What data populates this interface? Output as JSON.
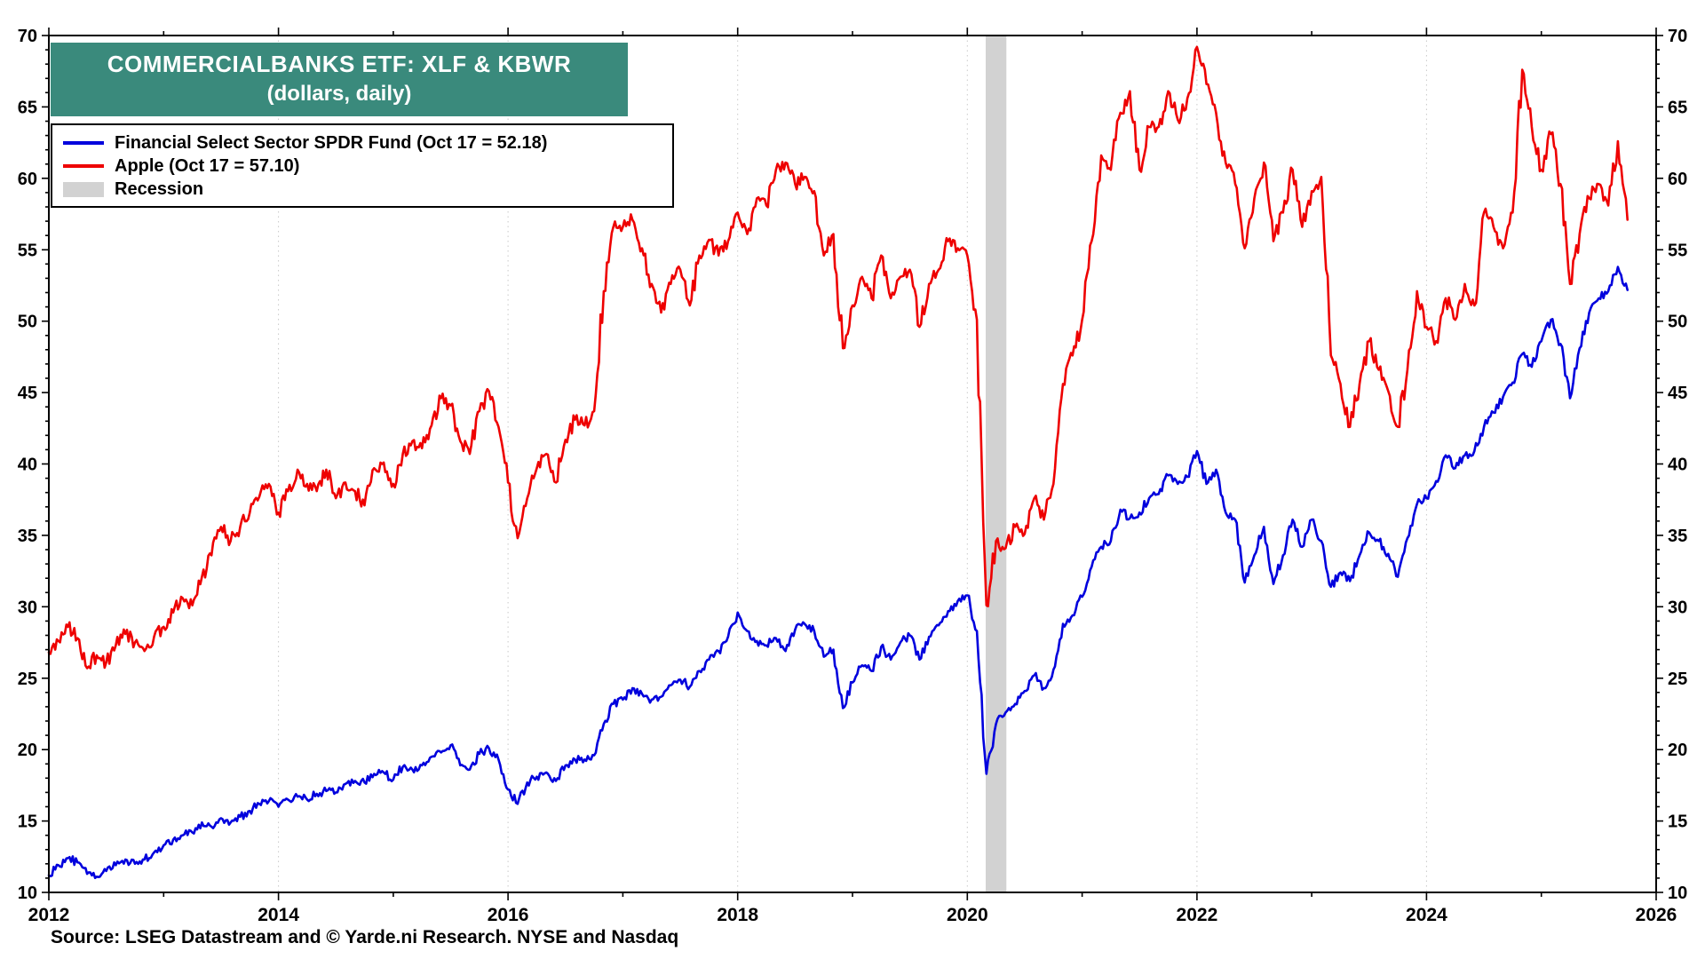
{
  "chart_data": {
    "type": "line",
    "title": "COMMERCIALBANKS ETF: XLF & KBWR",
    "subtitle": "(dollars, daily)",
    "xlabel": "",
    "ylabel": "dollars",
    "xlim": [
      2012,
      2026
    ],
    "ylim": [
      10,
      70
    ],
    "y_ticks": [
      10,
      15,
      20,
      25,
      30,
      35,
      40,
      45,
      50,
      55,
      60,
      65,
      70
    ],
    "x_ticks": [
      2012,
      2014,
      2016,
      2018,
      2020,
      2022,
      2024,
      2026
    ],
    "grid": "faint dashed vertical lines at even years",
    "legend_position": "top-left",
    "x_start": 2012.0,
    "x_step": "monthly (1/12 year)",
    "recession_bands": [
      {
        "start": 2020.16,
        "end": 2020.34
      }
    ],
    "legend": {
      "recession_label": "Recession"
    },
    "series": [
      {
        "name": "Financial Select Sector SPDR Fund (Oct 17 = 52.18)",
        "color": "#0000dd",
        "last_value": 52.18,
        "values": [
          11.2,
          11.9,
          12.4,
          12.1,
          11.3,
          11.1,
          11.5,
          11.9,
          12.3,
          12.0,
          12.3,
          12.8,
          13.3,
          13.7,
          14.0,
          14.2,
          14.9,
          14.6,
          15.2,
          14.9,
          15.3,
          15.7,
          16.2,
          16.4,
          16.0,
          16.5,
          16.7,
          16.5,
          16.9,
          17.1,
          17.0,
          17.6,
          17.8,
          17.7,
          18.3,
          18.4,
          17.9,
          18.8,
          18.6,
          18.9,
          19.5,
          19.8,
          20.3,
          18.9,
          18.6,
          19.7,
          20.1,
          19.3,
          17.2,
          16.2,
          17.7,
          18.1,
          18.4,
          17.8,
          18.9,
          19.3,
          19.3,
          19.6,
          21.8,
          23.2,
          23.5,
          24.3,
          23.9,
          23.5,
          23.7,
          24.5,
          24.9,
          24.4,
          25.5,
          26.3,
          26.9,
          27.9,
          29.6,
          28.3,
          27.6,
          27.3,
          27.8,
          26.9,
          28.4,
          28.8,
          28.3,
          26.5,
          27.0,
          22.9,
          24.7,
          25.9,
          25.5,
          27.2,
          26.3,
          27.5,
          28.0,
          26.3,
          27.9,
          28.7,
          29.7,
          30.4,
          30.8,
          28.3,
          18.3,
          21.8,
          22.6,
          23.2,
          24.1,
          25.2,
          24.3,
          25.6,
          28.8,
          29.4,
          30.7,
          32.8,
          34.2,
          34.6,
          36.8,
          36.2,
          36.6,
          37.6,
          37.9,
          39.2,
          38.6,
          39.1,
          40.9,
          38.6,
          39.6,
          36.6,
          36.1,
          31.7,
          33.6,
          35.6,
          31.6,
          33.6,
          36.1,
          34.2,
          36.1,
          34.6,
          31.4,
          32.4,
          31.8,
          33.6,
          35.2,
          34.6,
          33.7,
          32.1,
          34.8,
          37.2,
          37.6,
          38.8,
          40.6,
          39.7,
          40.6,
          40.9,
          42.6,
          43.6,
          44.7,
          45.7,
          47.7,
          46.8,
          48.6,
          50.1,
          48.4,
          44.6,
          48.1,
          50.6,
          51.6,
          52.1,
          53.8,
          52.18
        ]
      },
      {
        "name": "Apple (Oct 17 = 57.10)",
        "color": "#ee0000",
        "last_value": 57.1,
        "values": [
          26.8,
          27.6,
          28.6,
          27.8,
          25.7,
          26.6,
          26.1,
          27.3,
          28.1,
          27.5,
          26.9,
          27.9,
          28.6,
          29.6,
          30.6,
          30.1,
          32.1,
          33.6,
          35.6,
          34.6,
          35.6,
          36.6,
          37.7,
          38.6,
          36.6,
          38.1,
          39.6,
          38.6,
          38.1,
          39.6,
          37.6,
          38.7,
          38.1,
          37.1,
          39.7,
          40.1,
          38.6,
          40.7,
          41.6,
          41.1,
          42.7,
          44.6,
          44.1,
          41.6,
          40.7,
          43.7,
          45.1,
          42.6,
          38.7,
          34.8,
          37.6,
          39.7,
          40.7,
          38.7,
          41.7,
          43.1,
          42.7,
          43.7,
          52.1,
          56.6,
          56.6,
          57.1,
          55.1,
          52.6,
          50.6,
          52.6,
          53.6,
          51.1,
          54.6,
          55.7,
          54.6,
          55.6,
          57.6,
          56.1,
          58.6,
          58.1,
          60.6,
          61.1,
          59.6,
          60.1,
          59.1,
          54.6,
          56.1,
          48.1,
          51.1,
          53.1,
          51.6,
          54.6,
          51.6,
          53.1,
          53.6,
          49.6,
          52.6,
          53.6,
          55.6,
          55.1,
          54.6,
          50.1,
          30.1,
          34.6,
          34.1,
          35.6,
          35.1,
          37.6,
          36.1,
          38.6,
          45.6,
          47.6,
          50.1,
          55.6,
          61.6,
          60.6,
          64.6,
          66.1,
          60.6,
          63.6,
          63.6,
          66.1,
          64.1,
          65.6,
          69.2,
          66.6,
          64.6,
          61.1,
          59.6,
          55.1,
          58.6,
          61.1,
          55.6,
          57.6,
          60.6,
          56.6,
          59.1,
          60.1,
          47.6,
          45.6,
          42.6,
          45.6,
          48.6,
          46.6,
          45.1,
          42.6,
          46.6,
          52.1,
          49.6,
          48.6,
          51.6,
          50.1,
          52.6,
          51.1,
          57.6,
          56.6,
          55.1,
          57.6,
          67.6,
          63.6,
          60.6,
          63.1,
          59.6,
          52.6,
          56.1,
          58.6,
          59.6,
          58.1,
          62.6,
          57.1
        ]
      }
    ]
  },
  "colors": {
    "title_bg": "#3a8a7c",
    "blue": "#0000dd",
    "red": "#ee0000",
    "recession": "#d2d2d2",
    "frame": "#000000",
    "grid": "#c9c9c9"
  },
  "footer": {
    "source": "Source: LSEG Datastream and © Yarde.ni Research. NYSE and Nasdaq"
  }
}
